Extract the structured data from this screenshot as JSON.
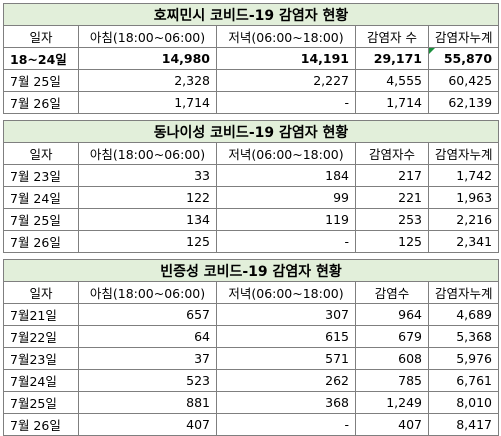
{
  "tables": [
    {
      "title": "호찌민시 코비드-19 감염자 현황",
      "headers": [
        "일자",
        "아침(18:00~06:00)",
        "저녁(06:00~18:00)",
        "감염자 수",
        "감염자누계"
      ],
      "rows": [
        [
          "18~24일",
          "14,980",
          "14,191",
          "29,171",
          "55,870"
        ],
        [
          "7월 25일",
          "2,328",
          "2,227",
          "4,555",
          "60,425"
        ],
        [
          "7월 26일",
          "1,714",
          "-",
          "1,714",
          "62,139"
        ]
      ]
    },
    {
      "title": "동나이성 코비드-19 감염자 현황",
      "headers": [
        "일자",
        "아침(18:00~06:00)",
        "저녁(06:00~18:00)",
        "감염자수",
        "감염자누계"
      ],
      "rows": [
        [
          "7월 23일",
          "33",
          "184",
          "217",
          "1,742"
        ],
        [
          "7월 24일",
          "122",
          "99",
          "221",
          "1,963"
        ],
        [
          "7월 25일",
          "134",
          "119",
          "253",
          "2,216"
        ],
        [
          "7월 26일",
          "125",
          "-",
          "125",
          "2,341"
        ]
      ]
    },
    {
      "title": "빈증성 코비드-19 감염자 현황",
      "headers": [
        "일자",
        "아침(18:00~06:00)",
        "저녁(06:00~18:00)",
        "감염수",
        "감염자누계"
      ],
      "rows": [
        [
          "7월21일",
          "657",
          "307",
          "964",
          "4,689"
        ],
        [
          "7월22일",
          "64",
          "615",
          "679",
          "5,368"
        ],
        [
          "7월23일",
          "37",
          "571",
          "608",
          "5,976"
        ],
        [
          "7월24일",
          "523",
          "262",
          "785",
          "6,761"
        ],
        [
          "7월25일",
          "881",
          "368",
          "1,249",
          "8,010"
        ],
        [
          "7월 26일",
          "407",
          "-",
          "407",
          "8,417"
        ]
      ]
    }
  ]
}
